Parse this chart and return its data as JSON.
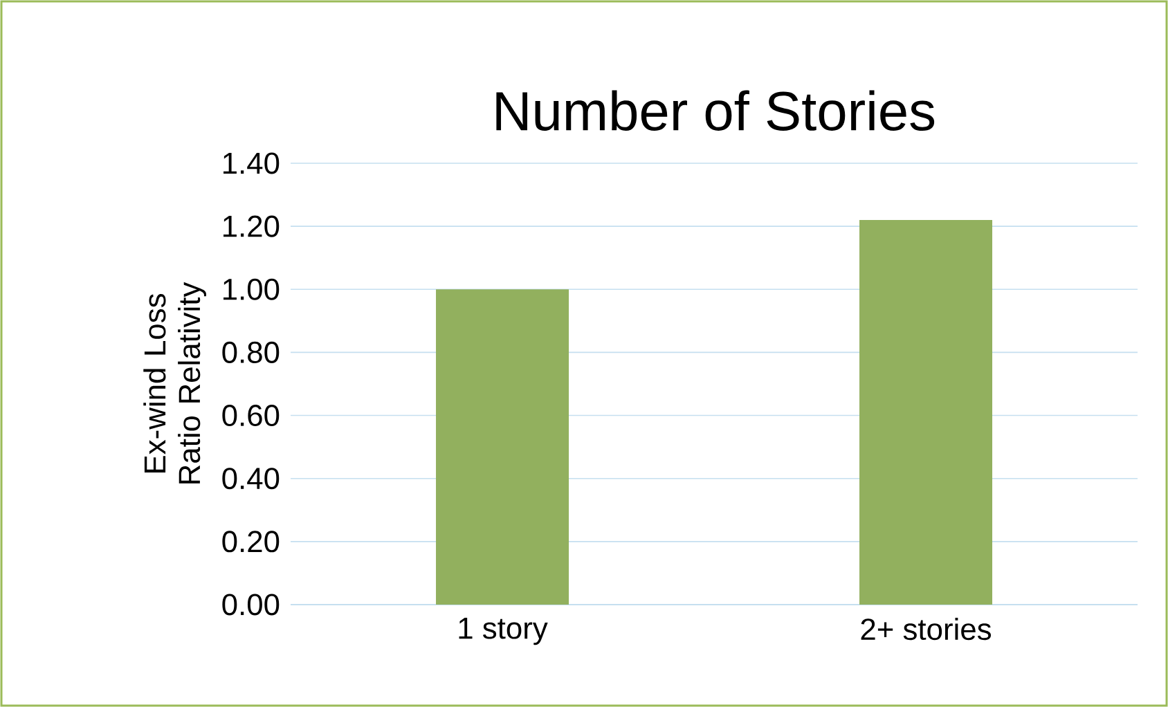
{
  "chart_data": {
    "type": "bar",
    "title": "Number of Stories",
    "ylabel": "Ex-wind Loss Ratio Relativity",
    "categories": [
      "1 story",
      "2+ stories"
    ],
    "values": [
      1.0,
      1.22
    ],
    "color": "#92b05e",
    "ylim": [
      0,
      1.4
    ],
    "yticks": [
      {
        "value": 0,
        "label": "0.00"
      },
      {
        "value": 0.2,
        "label": "0.20"
      },
      {
        "value": 0.4,
        "label": "0.40"
      },
      {
        "value": 0.6,
        "label": "0.60"
      },
      {
        "value": 0.8,
        "label": "0.80"
      },
      {
        "value": 1.0,
        "label": "1.00"
      },
      {
        "value": 1.2,
        "label": "1.20"
      },
      {
        "value": 1.4,
        "label": "1.40"
      }
    ],
    "grid": "y"
  }
}
